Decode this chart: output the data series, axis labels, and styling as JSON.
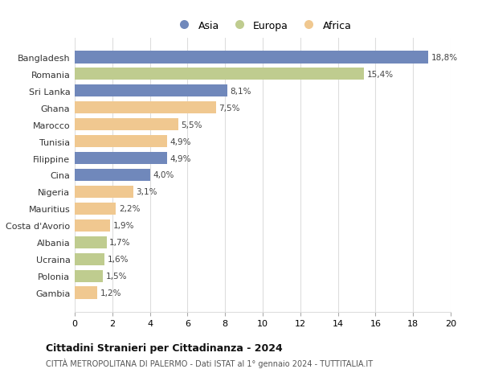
{
  "countries": [
    "Bangladesh",
    "Romania",
    "Sri Lanka",
    "Ghana",
    "Marocco",
    "Tunisia",
    "Filippine",
    "Cina",
    "Nigeria",
    "Mauritius",
    "Costa d'Avorio",
    "Albania",
    "Ucraina",
    "Polonia",
    "Gambia"
  ],
  "values": [
    18.8,
    15.4,
    8.1,
    7.5,
    5.5,
    4.9,
    4.9,
    4.0,
    3.1,
    2.2,
    1.9,
    1.7,
    1.6,
    1.5,
    1.2
  ],
  "labels": [
    "18,8%",
    "15,4%",
    "8,1%",
    "7,5%",
    "5,5%",
    "4,9%",
    "4,9%",
    "4,0%",
    "3,1%",
    "2,2%",
    "1,9%",
    "1,7%",
    "1,6%",
    "1,5%",
    "1,2%"
  ],
  "continents": [
    "Asia",
    "Europa",
    "Asia",
    "Africa",
    "Africa",
    "Africa",
    "Asia",
    "Asia",
    "Africa",
    "Africa",
    "Africa",
    "Europa",
    "Europa",
    "Europa",
    "Africa"
  ],
  "colors": {
    "Asia": "#7088bb",
    "Europa": "#bfcc8f",
    "Africa": "#f0c890"
  },
  "title": "Cittadini Stranieri per Cittadinanza - 2024",
  "subtitle": "CITTÀ METROPOLITANA DI PALERMO - Dati ISTAT al 1° gennaio 2024 - TUTTITALIA.IT",
  "xlim": [
    0,
    20
  ],
  "xticks": [
    0,
    2,
    4,
    6,
    8,
    10,
    12,
    14,
    16,
    18,
    20
  ],
  "background_color": "#ffffff",
  "grid_color": "#dddddd",
  "bar_height": 0.75
}
